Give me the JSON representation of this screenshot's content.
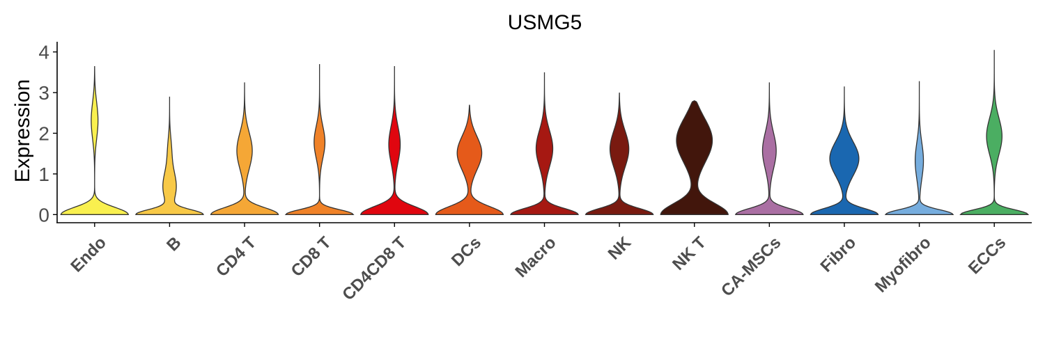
{
  "chart_data": {
    "type": "violin",
    "title": "USMG5",
    "ylabel": "Expression",
    "xlabel": "",
    "ylim": [
      -0.2,
      4.25
    ],
    "yticks": [
      0,
      1,
      2,
      3,
      4
    ],
    "grid": false,
    "legend": "none",
    "categories": [
      "Endo",
      "B",
      "CD4 T",
      "CD8 T",
      "CD4CD8 T",
      "DCs",
      "Macro",
      "NK",
      "NK T",
      "CA-MSCs",
      "Fibro",
      "Myofibro",
      "ECCs"
    ],
    "series": [
      {
        "category": "Endo",
        "color": "#F9F04F",
        "max": 3.65,
        "modes": [
          {
            "y": 0,
            "w": 1.0,
            "s": 0.18
          },
          {
            "y": 2.35,
            "w": 0.13,
            "s": 0.45
          }
        ]
      },
      {
        "category": "B",
        "color": "#F8C947",
        "max": 2.9,
        "modes": [
          {
            "y": 0,
            "w": 1.0,
            "s": 0.12
          },
          {
            "y": 0.7,
            "w": 0.22,
            "s": 0.38
          },
          {
            "y": 1.6,
            "w": 0.07,
            "s": 0.35
          }
        ]
      },
      {
        "category": "CD4 T",
        "color": "#F5A736",
        "max": 3.25,
        "modes": [
          {
            "y": 0,
            "w": 1.0,
            "s": 0.17
          },
          {
            "y": 1.6,
            "w": 0.27,
            "s": 0.45
          }
        ]
      },
      {
        "category": "CD8 T",
        "color": "#F08228",
        "max": 3.7,
        "modes": [
          {
            "y": 0,
            "w": 1.0,
            "s": 0.12
          },
          {
            "y": 1.8,
            "w": 0.19,
            "s": 0.4
          }
        ]
      },
      {
        "category": "CD4CD8 T",
        "color": "#E0060F",
        "max": 3.65,
        "modes": [
          {
            "y": 0,
            "w": 1.0,
            "s": 0.2
          },
          {
            "y": 1.75,
            "w": 0.2,
            "s": 0.45
          }
        ]
      },
      {
        "category": "DCs",
        "color": "#E55A1A",
        "max": 2.7,
        "modes": [
          {
            "y": 0,
            "w": 1.0,
            "s": 0.2
          },
          {
            "y": 1.55,
            "w": 0.45,
            "s": 0.42
          }
        ]
      },
      {
        "category": "Macro",
        "color": "#A61812",
        "max": 3.5,
        "modes": [
          {
            "y": 0,
            "w": 1.0,
            "s": 0.15
          },
          {
            "y": 1.65,
            "w": 0.29,
            "s": 0.45
          }
        ]
      },
      {
        "category": "NK",
        "color": "#791A10",
        "max": 3.0,
        "modes": [
          {
            "y": 0,
            "w": 1.0,
            "s": 0.15
          },
          {
            "y": 1.65,
            "w": 0.34,
            "s": 0.45
          }
        ]
      },
      {
        "category": "NK T",
        "color": "#42160C",
        "max": 2.8,
        "modes": [
          {
            "y": 0,
            "w": 1.0,
            "s": 0.28
          },
          {
            "y": 1.9,
            "w": 0.7,
            "s": 0.55
          }
        ]
      },
      {
        "category": "CA-MSCs",
        "color": "#AA6FA3",
        "max": 3.25,
        "modes": [
          {
            "y": 0,
            "w": 1.0,
            "s": 0.15
          },
          {
            "y": 1.6,
            "w": 0.24,
            "s": 0.45
          }
        ]
      },
      {
        "category": "Fibro",
        "color": "#1A67B0",
        "max": 3.15,
        "modes": [
          {
            "y": 0,
            "w": 1.0,
            "s": 0.15
          },
          {
            "y": 1.4,
            "w": 0.5,
            "s": 0.42
          }
        ]
      },
      {
        "category": "Myofibro",
        "color": "#76ADDE",
        "max": 3.28,
        "modes": [
          {
            "y": 0,
            "w": 1.0,
            "s": 0.12
          },
          {
            "y": 1.35,
            "w": 0.14,
            "s": 0.45
          }
        ]
      },
      {
        "category": "ECCs",
        "color": "#4BAE62",
        "max": 4.05,
        "modes": [
          {
            "y": 0,
            "w": 1.0,
            "s": 0.12
          },
          {
            "y": 1.95,
            "w": 0.27,
            "s": 0.45
          }
        ]
      }
    ]
  }
}
